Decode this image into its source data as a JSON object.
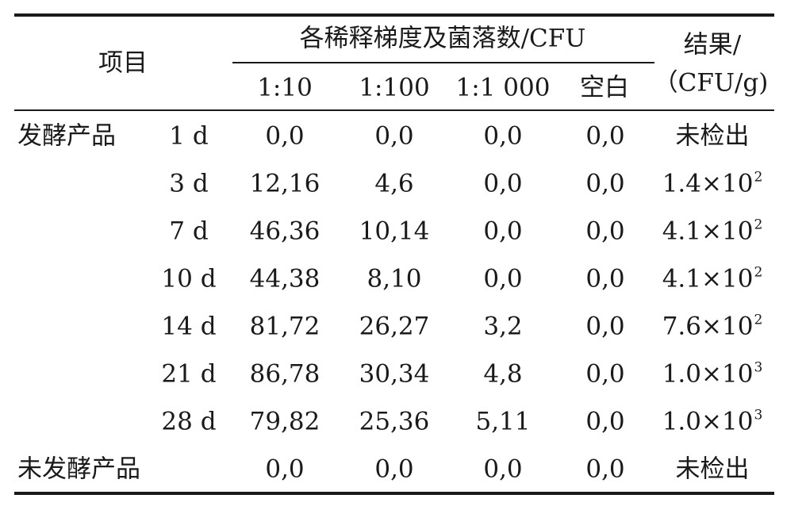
{
  "header": {
    "item": "项目",
    "group": "各稀释梯度及菌落数/CFU",
    "result_line1": "结果/",
    "result_line2": "（CFU/g)",
    "dilutions": [
      "1:10",
      "1:100",
      "1:1 000",
      "空白"
    ]
  },
  "group_label": "发酵产品",
  "rows": [
    {
      "day": "1 d",
      "c1": "0,0",
      "c2": "0,0",
      "c3": "0,0",
      "blank": "0,0",
      "result": "未检出",
      "exp": ""
    },
    {
      "day": "3 d",
      "c1": "12,16",
      "c2": "4,6",
      "c3": "0,0",
      "blank": "0,0",
      "result": "1.4×10",
      "exp": "2"
    },
    {
      "day": "7 d",
      "c1": "46,36",
      "c2": "10,14",
      "c3": "0,0",
      "blank": "0,0",
      "result": "4.1×10",
      "exp": "2"
    },
    {
      "day": "10 d",
      "c1": "44,38",
      "c2": "8,10",
      "c3": "0,0",
      "blank": "0,0",
      "result": "4.1×10",
      "exp": "2"
    },
    {
      "day": "14 d",
      "c1": "81,72",
      "c2": "26,27",
      "c3": "3,2",
      "blank": "0,0",
      "result": "7.6×10",
      "exp": "2"
    },
    {
      "day": "21 d",
      "c1": "86,78",
      "c2": "30,34",
      "c3": "4,8",
      "blank": "0,0",
      "result": "1.0×10",
      "exp": "3"
    },
    {
      "day": "28 d",
      "c1": "79,82",
      "c2": "25,36",
      "c3": "5,11",
      "blank": "0,0",
      "result": "1.0×10",
      "exp": "3"
    }
  ],
  "unfermented": {
    "label": "未发酵产品",
    "c1": "0,0",
    "c2": "0,0",
    "c3": "0,0",
    "blank": "0,0",
    "result": "未检出"
  }
}
